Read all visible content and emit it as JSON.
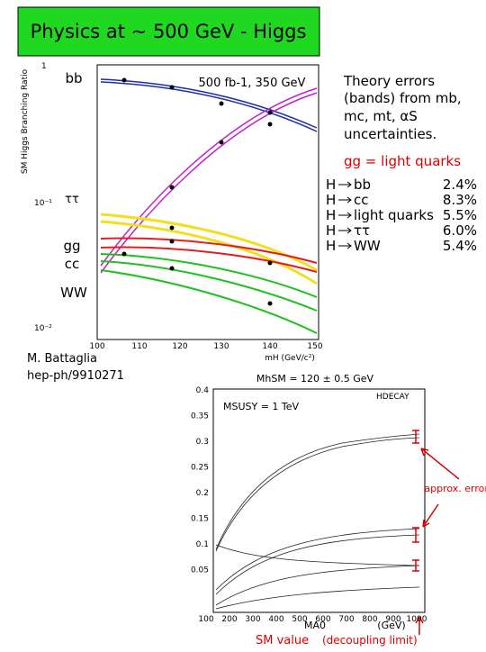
{
  "title": "Physics at ~ 500 GeV - Higgs",
  "upper_plot": {
    "y_label": "SM Higgs Branching Ratio",
    "y_ticks": [
      "1",
      "10⁻¹",
      "10⁻²"
    ],
    "x_ticks": [
      "100",
      "110",
      "120",
      "130",
      "140",
      "150"
    ],
    "x_label": "mH (GeV/c²)",
    "run_label": "500 fb-1, 350 GeV",
    "channel_labels": [
      "bb",
      "ττ",
      "gg",
      "cc",
      "WW"
    ]
  },
  "author": "M. Battaglia",
  "reference": "hep-ph/9910271",
  "notes": {
    "lines": [
      "Theory errors",
      "(bands) from mb,",
      "mc, mt, αS",
      "uncertainties."
    ],
    "gg_note": "gg = light quarks"
  },
  "errors_table": {
    "prefix": "H",
    "rows": [
      [
        "bb",
        "2.4%"
      ],
      [
        "cc",
        "8.3%"
      ],
      [
        "light quarks",
        "5.5%"
      ],
      [
        "ττ",
        "6.0%"
      ],
      [
        "WW",
        "5.4%"
      ]
    ]
  },
  "lower_plot": {
    "mass_label": "MhSM = 120 ± 0.5 GeV",
    "program": "HDECAY",
    "susy_label": "MSUSY = 1 TeV",
    "y_ticks": [
      "0.4",
      "0.35",
      "0.3",
      "0.25",
      "0.2",
      "0.15",
      "0.1",
      "0.05"
    ],
    "x_ticks": [
      "100",
      "200",
      "300",
      "400",
      "500",
      "600",
      "700",
      "800",
      "900",
      "1000"
    ],
    "x_label": "MA0",
    "x_unit": "(GeV)",
    "arrow_note": "approx. errors",
    "sm_value": "SM value",
    "sm_note": "(decoupling limit)"
  }
}
